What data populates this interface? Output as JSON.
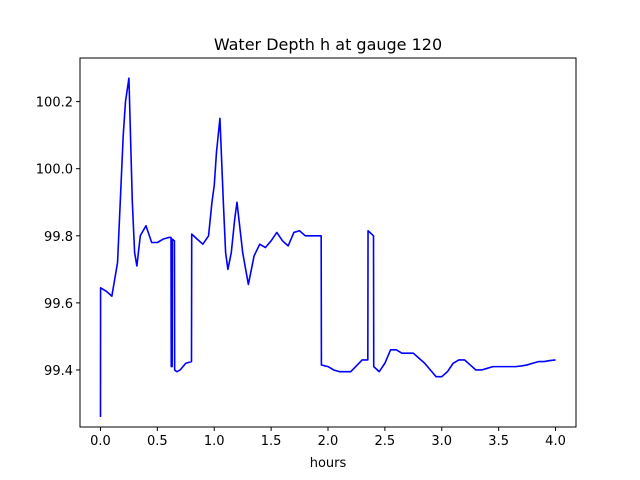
{
  "chart_data": {
    "type": "line",
    "title": "Water Depth h at gauge 120",
    "xlabel": "hours",
    "ylabel": "",
    "xlim": [
      -0.18,
      4.18
    ],
    "ylim": [
      99.23,
      100.33
    ],
    "xticks": [
      0.0,
      0.5,
      1.0,
      1.5,
      2.0,
      2.5,
      3.0,
      3.5,
      4.0
    ],
    "xtick_labels": [
      "0.0",
      "0.5",
      "1.0",
      "1.5",
      "2.0",
      "2.5",
      "3.0",
      "3.5",
      "4.0"
    ],
    "yticks": [
      99.4,
      99.6,
      99.8,
      100.0,
      100.2
    ],
    "ytick_labels": [
      "99.4",
      "99.6",
      "99.8",
      "100.0",
      "100.2"
    ],
    "grid": false,
    "color": "#0000ff",
    "series": [
      {
        "x": [
          0.0,
          0.001,
          0.05,
          0.1,
          0.15,
          0.2,
          0.22,
          0.25,
          0.28,
          0.3,
          0.32,
          0.35,
          0.4,
          0.45,
          0.5,
          0.55,
          0.6,
          0.62,
          0.622,
          0.63,
          0.632,
          0.65,
          0.652,
          0.67,
          0.672,
          0.7,
          0.75,
          0.8,
          0.802,
          0.85,
          0.9,
          0.95,
          0.98,
          1.0,
          1.02,
          1.05,
          1.08,
          1.1,
          1.12,
          1.15,
          1.18,
          1.2,
          1.25,
          1.3,
          1.35,
          1.4,
          1.45,
          1.5,
          1.55,
          1.6,
          1.65,
          1.7,
          1.75,
          1.8,
          1.85,
          1.9,
          1.92,
          1.94,
          1.942,
          2.0,
          2.05,
          2.1,
          2.2,
          2.3,
          2.35,
          2.352,
          2.4,
          2.402,
          2.45,
          2.5,
          2.55,
          2.6,
          2.65,
          2.7,
          2.75,
          2.8,
          2.85,
          2.9,
          2.95,
          3.0,
          3.05,
          3.1,
          3.15,
          3.2,
          3.25,
          3.3,
          3.35,
          3.4,
          3.45,
          3.5,
          3.55,
          3.6,
          3.65,
          3.7,
          3.75,
          3.8,
          3.85,
          3.9,
          3.95,
          4.0
        ],
        "y": [
          99.26,
          99.645,
          99.635,
          99.62,
          99.72,
          100.1,
          100.2,
          100.27,
          99.9,
          99.75,
          99.71,
          99.8,
          99.83,
          99.78,
          99.78,
          99.79,
          99.795,
          99.795,
          99.41,
          99.41,
          99.79,
          99.785,
          99.4,
          99.395,
          99.395,
          99.4,
          99.42,
          99.425,
          99.805,
          99.79,
          99.775,
          99.8,
          99.9,
          99.95,
          100.05,
          100.15,
          99.9,
          99.75,
          99.7,
          99.75,
          99.85,
          99.9,
          99.75,
          99.655,
          99.74,
          99.775,
          99.765,
          99.785,
          99.81,
          99.785,
          99.77,
          99.81,
          99.815,
          99.8,
          99.8,
          99.8,
          99.8,
          99.8,
          99.415,
          99.41,
          99.4,
          99.395,
          99.395,
          99.43,
          99.43,
          99.815,
          99.8,
          99.41,
          99.395,
          99.42,
          99.46,
          99.46,
          99.45,
          99.45,
          99.45,
          99.435,
          99.42,
          99.4,
          99.38,
          99.38,
          99.395,
          99.42,
          99.43,
          99.43,
          99.415,
          99.4,
          99.4,
          99.405,
          99.41,
          99.41,
          99.41,
          99.41,
          99.41,
          99.412,
          99.415,
          99.42,
          99.425,
          99.425,
          99.428,
          99.43
        ]
      }
    ]
  }
}
